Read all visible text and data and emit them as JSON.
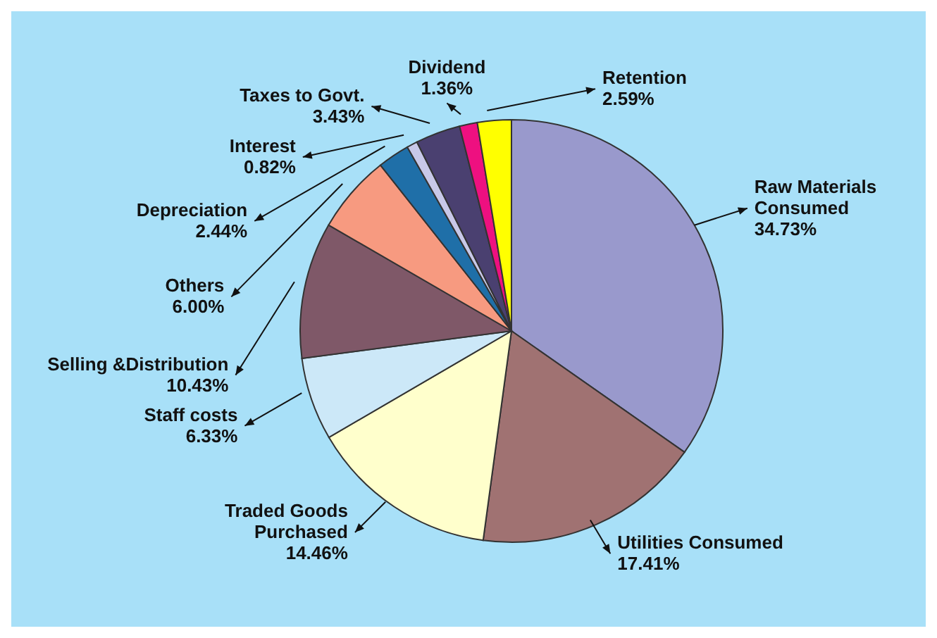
{
  "chart_data": {
    "type": "pie",
    "categories": [
      "Raw Materials Consumed",
      "Utilities Consumed",
      "Traded Goods Purchased",
      "Staff costs",
      "Selling &Distribution",
      "Others",
      "Depreciation",
      "Interest",
      "Taxes to Govt.",
      "Dividend",
      "Retention"
    ],
    "values": [
      34.73,
      17.41,
      14.46,
      6.33,
      10.43,
      6.0,
      2.44,
      0.82,
      3.43,
      1.36,
      2.59
    ],
    "value_labels": [
      "34.73%",
      "17.41%",
      "14.46%",
      "6.33%",
      "10.43%",
      "6.00%",
      "2.44%",
      "0.82%",
      "3.43%",
      "1.36%",
      "2.59%"
    ],
    "colors": [
      "#9999cc",
      "#a07272",
      "#ffffcc",
      "#cce8f8",
      "#7f5868",
      "#f79a80",
      "#1f6fa8",
      "#c8c8e8",
      "#4a4070",
      "#ee1080",
      "#ffff00"
    ]
  }
}
